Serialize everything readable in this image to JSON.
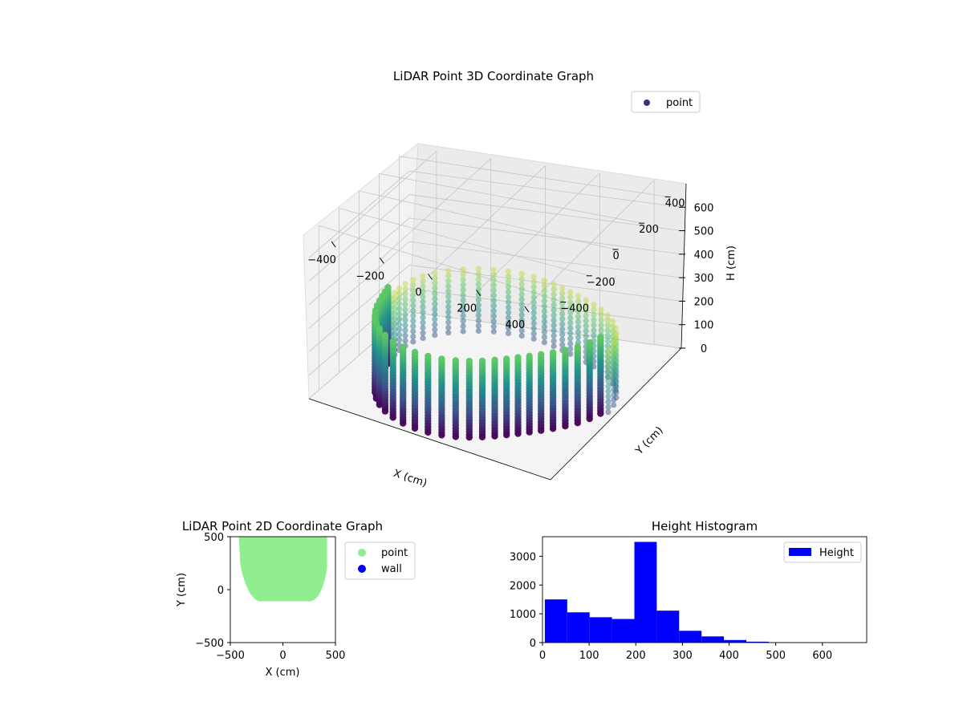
{
  "chart_data": [
    {
      "type": "scatter",
      "projection": "3d",
      "title": "LiDAR Point 3D Coordinate Graph",
      "xlabel": "X (cm)",
      "ylabel": "Y (cm)",
      "zlabel": "H (cm)",
      "xticks": [
        -400,
        -200,
        0,
        200,
        400
      ],
      "yticks": [
        -400,
        -200,
        0,
        200,
        400
      ],
      "zticks": [
        0,
        100,
        200,
        300,
        400,
        500,
        600
      ],
      "xlim": [
        -500,
        500
      ],
      "ylim": [
        -500,
        500
      ],
      "zlim": [
        0,
        700
      ],
      "z_axis_inverted": true,
      "colormap": "viridis",
      "grid": true,
      "legend": {
        "location": "top-right",
        "entries": [
          {
            "label": "point",
            "color": "#472c7a"
          }
        ]
      },
      "point_cloud": {
        "description_shape": "ring of vertical scan columns around the sensor",
        "radius_cm": [
          380,
          470
        ],
        "height_cm": [
          0,
          330
        ]
      }
    },
    {
      "type": "scatter",
      "title": "LiDAR Point 2D Coordinate Graph",
      "xlabel": "X (cm)",
      "ylabel": "Y (cm)",
      "xticks": [
        -500,
        0,
        500
      ],
      "yticks": [
        -500,
        0,
        500
      ],
      "xlim": [
        -500,
        500
      ],
      "ylim": [
        -500,
        500
      ],
      "legend": {
        "location": "outside-right",
        "entries": [
          {
            "label": "point",
            "color": "#90ee90"
          },
          {
            "label": "wall",
            "color": "#0000ff"
          }
        ]
      },
      "point_region": {
        "x_range": [
          -420,
          420
        ],
        "y_range": [
          -110,
          500
        ]
      }
    },
    {
      "type": "bar",
      "subtype": "histogram",
      "title": "Height Histogram",
      "xlabel": "",
      "ylabel": "",
      "bin_edges": [
        5,
        53,
        101,
        149,
        197,
        245,
        293,
        341,
        389,
        437,
        485,
        533,
        581,
        629,
        677
      ],
      "values": [
        1500,
        1050,
        880,
        820,
        3500,
        1110,
        410,
        215,
        90,
        30,
        10,
        5,
        3,
        2
      ],
      "xlim": [
        0,
        695
      ],
      "ylim": [
        0,
        3680
      ],
      "xticks": [
        0,
        100,
        200,
        300,
        400,
        500,
        600
      ],
      "yticks": [
        0,
        1000,
        2000,
        3000
      ],
      "color": "#0000ff",
      "legend": {
        "location": "top-right",
        "entries": [
          {
            "label": "Height",
            "color": "#0000ff"
          }
        ]
      }
    }
  ]
}
